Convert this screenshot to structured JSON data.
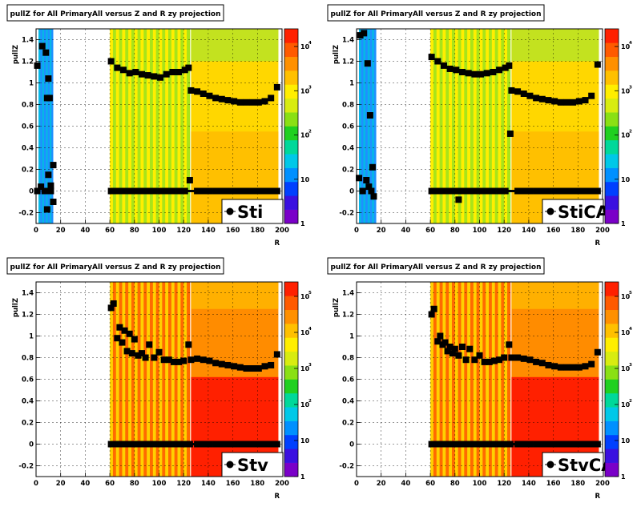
{
  "colors": {
    "low": "#1e90ff",
    "mid": "#5ad32a",
    "high": "#ffd700",
    "peak": "#ff2000",
    "marker": "#000000"
  },
  "chart_data": [
    {
      "type": "heatmap",
      "panel": "Sti",
      "title": "pullZ for All PrimaryAll versus Z and R zy projection",
      "xlabel": "R",
      "ylabel": "pullZ",
      "legend": "Sti",
      "xlim": [
        0,
        200
      ],
      "ylim": [
        -0.3,
        1.5
      ],
      "x_ticks": [
        "0",
        "20",
        "40",
        "60",
        "80",
        "100",
        "120",
        "140",
        "160",
        "180",
        "200"
      ],
      "y_ticks": [
        "-0.2",
        "0",
        "0.2",
        "0.4",
        "0.6",
        "0.8",
        "1",
        "1.2",
        "1.4"
      ],
      "colorbar": {
        "min_exp": 0,
        "max_exp": 4.4,
        "labels": [
          {
            "base": "1",
            "exp": ""
          },
          {
            "base": "10",
            "exp": ""
          },
          {
            "base": "10",
            "exp": "2"
          },
          {
            "base": "10",
            "exp": "3"
          },
          {
            "base": "10",
            "exp": "4"
          }
        ]
      },
      "regions": [
        {
          "x": [
            2,
            14
          ],
          "level": "low"
        },
        {
          "x": [
            60,
            125
          ],
          "level": "mid_stripes"
        },
        {
          "x": [
            126,
            197
          ],
          "level": "high"
        }
      ],
      "series": [
        {
          "name": "Sti",
          "x": [
            1,
            5,
            8,
            9,
            10,
            11,
            12,
            14,
            61,
            66,
            71,
            76,
            81,
            86,
            91,
            96,
            101,
            106,
            111,
            116,
            121,
            124,
            126,
            131,
            136,
            141,
            146,
            151,
            156,
            161,
            166,
            171,
            176,
            181,
            186,
            191,
            196
          ],
          "y": [
            1.16,
            1.34,
            1.28,
            0.86,
            1.04,
            0.86,
            0.05,
            0.24,
            1.2,
            1.14,
            1.12,
            1.09,
            1.1,
            1.08,
            1.07,
            1.06,
            1.05,
            1.08,
            1.1,
            1.1,
            1.12,
            1.14,
            0.93,
            0.92,
            0.9,
            0.88,
            0.86,
            0.85,
            0.84,
            0.83,
            0.82,
            0.82,
            0.82,
            0.82,
            0.83,
            0.86,
            0.96
          ]
        },
        {
          "name": "Sti_zero",
          "x": [
            1,
            4,
            7,
            9,
            10,
            12,
            14,
            61,
            66,
            71,
            76,
            81,
            86,
            91,
            96,
            101,
            106,
            111,
            116,
            121,
            125,
            131,
            136,
            141,
            146,
            151,
            156,
            161,
            166,
            171,
            176,
            181,
            186,
            191,
            196
          ],
          "y": [
            0.0,
            0.04,
            0.0,
            -0.17,
            0.15,
            0.0,
            -0.1,
            0.0,
            0.0,
            0.0,
            0.0,
            0.0,
            0.0,
            0.0,
            0.0,
            0.0,
            0.0,
            0.0,
            0.0,
            0.0,
            0.1,
            0.0,
            0.0,
            0.0,
            0.0,
            0.0,
            0.0,
            0.0,
            0.0,
            0.0,
            0.0,
            0.0,
            0.0,
            0.0,
            0.0
          ]
        }
      ]
    },
    {
      "type": "heatmap",
      "panel": "StiCA",
      "title": "pullZ for All PrimaryAll versus Z and R zy projection",
      "xlabel": "R",
      "ylabel": "pullZ",
      "legend": "StiCA",
      "xlim": [
        0,
        200
      ],
      "ylim": [
        -0.3,
        1.5
      ],
      "x_ticks": [
        "0",
        "20",
        "40",
        "60",
        "80",
        "100",
        "120",
        "140",
        "160",
        "180",
        "200"
      ],
      "y_ticks": [
        "-0.2",
        "0",
        "0.2",
        "0.4",
        "0.6",
        "0.8",
        "1",
        "1.2",
        "1.4"
      ],
      "colorbar": {
        "min_exp": 0,
        "max_exp": 4.4,
        "labels": [
          {
            "base": "1",
            "exp": ""
          },
          {
            "base": "10",
            "exp": ""
          },
          {
            "base": "10",
            "exp": "2"
          },
          {
            "base": "10",
            "exp": "3"
          },
          {
            "base": "10",
            "exp": "4"
          }
        ]
      },
      "regions": [
        {
          "x": [
            2,
            16
          ],
          "level": "low"
        },
        {
          "x": [
            60,
            125
          ],
          "level": "mid_stripes"
        },
        {
          "x": [
            126,
            197
          ],
          "level": "high"
        }
      ],
      "series": [
        {
          "name": "StiCA",
          "x": [
            3,
            6,
            9,
            11,
            13,
            61,
            66,
            71,
            76,
            81,
            86,
            91,
            96,
            101,
            106,
            111,
            116,
            121,
            124,
            126,
            131,
            136,
            141,
            146,
            151,
            156,
            161,
            166,
            171,
            176,
            181,
            186,
            191,
            196
          ],
          "y": [
            1.44,
            1.46,
            1.18,
            0.7,
            0.22,
            1.24,
            1.2,
            1.16,
            1.13,
            1.12,
            1.1,
            1.09,
            1.08,
            1.08,
            1.09,
            1.1,
            1.12,
            1.14,
            1.16,
            0.93,
            0.92,
            0.9,
            0.88,
            0.86,
            0.85,
            0.84,
            0.83,
            0.82,
            0.82,
            0.82,
            0.83,
            0.84,
            0.88,
            1.17
          ]
        },
        {
          "name": "StiCA_zero",
          "x": [
            2,
            5,
            8,
            10,
            12,
            14,
            61,
            66,
            71,
            76,
            81,
            83,
            86,
            91,
            96,
            101,
            106,
            111,
            116,
            121,
            125,
            131,
            136,
            141,
            146,
            151,
            156,
            161,
            166,
            171,
            176,
            181,
            186,
            191,
            196
          ],
          "y": [
            0.12,
            0.0,
            0.1,
            0.04,
            0.0,
            -0.05,
            0.0,
            0.0,
            0.0,
            0.0,
            0.0,
            -0.08,
            0.0,
            0.0,
            0.0,
            0.0,
            0.0,
            0.0,
            0.0,
            0.0,
            0.53,
            0.0,
            0.0,
            0.0,
            0.0,
            0.0,
            0.0,
            0.0,
            0.0,
            0.0,
            0.0,
            0.0,
            0.0,
            0.0,
            0.0
          ]
        }
      ]
    },
    {
      "type": "heatmap",
      "panel": "Stv",
      "title": "pullZ for All PrimaryAll versus Z and R zy projection",
      "xlabel": "R",
      "ylabel": "pullZ",
      "legend": "Stv",
      "xlim": [
        0,
        200
      ],
      "ylim": [
        -0.3,
        1.5
      ],
      "x_ticks": [
        "0",
        "20",
        "40",
        "60",
        "80",
        "100",
        "120",
        "140",
        "160",
        "180",
        "200"
      ],
      "y_ticks": [
        "-0.2",
        "0",
        "0.2",
        "0.4",
        "0.6",
        "0.8",
        "1",
        "1.2",
        "1.4"
      ],
      "colorbar": {
        "min_exp": 0,
        "max_exp": 5.4,
        "labels": [
          {
            "base": "1",
            "exp": ""
          },
          {
            "base": "10",
            "exp": ""
          },
          {
            "base": "10",
            "exp": "2"
          },
          {
            "base": "10",
            "exp": "3"
          },
          {
            "base": "10",
            "exp": "4"
          },
          {
            "base": "10",
            "exp": "5"
          }
        ]
      },
      "regions": [
        {
          "x": [
            60,
            125
          ],
          "level": "hot_stripes"
        },
        {
          "x": [
            126,
            197
          ],
          "level": "peak"
        }
      ],
      "series": [
        {
          "name": "Stv",
          "x": [
            61,
            63,
            66,
            68,
            70,
            72,
            74,
            76,
            78,
            80,
            83,
            86,
            89,
            92,
            96,
            100,
            104,
            108,
            112,
            116,
            120,
            124,
            126,
            131,
            136,
            141,
            146,
            151,
            156,
            161,
            166,
            171,
            176,
            181,
            186,
            191,
            196
          ],
          "y": [
            1.26,
            1.3,
            0.98,
            1.08,
            0.94,
            1.05,
            0.86,
            1.02,
            0.84,
            0.97,
            0.82,
            0.84,
            0.8,
            0.92,
            0.8,
            0.85,
            0.78,
            0.78,
            0.76,
            0.76,
            0.77,
            0.92,
            0.78,
            0.79,
            0.78,
            0.77,
            0.75,
            0.74,
            0.73,
            0.72,
            0.71,
            0.7,
            0.7,
            0.7,
            0.72,
            0.73,
            0.83
          ]
        },
        {
          "name": "Stv_zero",
          "x": [
            61,
            66,
            71,
            76,
            81,
            86,
            91,
            96,
            101,
            106,
            111,
            116,
            121,
            125,
            131,
            136,
            141,
            146,
            151,
            156,
            161,
            166,
            171,
            176,
            181,
            186,
            191,
            196
          ],
          "y": [
            0.0,
            0.0,
            0.0,
            0.0,
            0.0,
            0.0,
            0.0,
            0.0,
            0.0,
            0.0,
            0.0,
            0.0,
            0.0,
            0.0,
            0.0,
            0.0,
            0.0,
            0.0,
            0.0,
            0.0,
            0.0,
            0.0,
            0.0,
            0.0,
            0.0,
            0.0,
            0.0,
            0.0
          ]
        }
      ]
    },
    {
      "type": "heatmap",
      "panel": "StvCA",
      "title": "pullZ for All PrimaryAll versus Z and R zy projection",
      "xlabel": "R",
      "ylabel": "pullZ",
      "legend": "StvCA",
      "xlim": [
        0,
        200
      ],
      "ylim": [
        -0.3,
        1.5
      ],
      "x_ticks": [
        "0",
        "20",
        "40",
        "60",
        "80",
        "100",
        "120",
        "140",
        "160",
        "180",
        "200"
      ],
      "y_ticks": [
        "-0.2",
        "0",
        "0.2",
        "0.4",
        "0.6",
        "0.8",
        "1",
        "1.2",
        "1.4"
      ],
      "colorbar": {
        "min_exp": 0,
        "max_exp": 5.4,
        "labels": [
          {
            "base": "1",
            "exp": ""
          },
          {
            "base": "10",
            "exp": ""
          },
          {
            "base": "10",
            "exp": "2"
          },
          {
            "base": "10",
            "exp": "3"
          },
          {
            "base": "10",
            "exp": "4"
          },
          {
            "base": "10",
            "exp": "5"
          }
        ]
      },
      "regions": [
        {
          "x": [
            60,
            125
          ],
          "level": "hot_stripes"
        },
        {
          "x": [
            126,
            197
          ],
          "level": "peak"
        }
      ],
      "series": [
        {
          "name": "StvCA",
          "x": [
            61,
            63,
            66,
            68,
            70,
            72,
            74,
            76,
            78,
            80,
            83,
            86,
            89,
            92,
            96,
            100,
            104,
            108,
            112,
            116,
            120,
            124,
            126,
            131,
            136,
            141,
            146,
            151,
            156,
            161,
            166,
            171,
            176,
            181,
            186,
            191,
            196
          ],
          "y": [
            1.2,
            1.25,
            0.95,
            1.0,
            0.92,
            0.94,
            0.86,
            0.9,
            0.84,
            0.88,
            0.82,
            0.9,
            0.78,
            0.88,
            0.78,
            0.82,
            0.76,
            0.76,
            0.77,
            0.78,
            0.8,
            0.92,
            0.8,
            0.8,
            0.79,
            0.78,
            0.76,
            0.75,
            0.73,
            0.72,
            0.71,
            0.71,
            0.71,
            0.71,
            0.72,
            0.74,
            0.85
          ]
        },
        {
          "name": "StvCA_zero",
          "x": [
            61,
            66,
            71,
            76,
            81,
            86,
            91,
            96,
            101,
            106,
            111,
            116,
            121,
            125,
            131,
            136,
            141,
            146,
            151,
            156,
            161,
            166,
            171,
            176,
            181,
            186,
            191,
            196
          ],
          "y": [
            0.0,
            0.0,
            0.0,
            0.0,
            0.0,
            0.0,
            0.0,
            0.0,
            0.0,
            0.0,
            0.0,
            0.0,
            0.0,
            0.0,
            0.0,
            0.0,
            0.0,
            0.0,
            0.0,
            0.0,
            0.0,
            0.0,
            0.0,
            0.0,
            0.0,
            0.0,
            0.0,
            0.0
          ]
        }
      ]
    }
  ]
}
